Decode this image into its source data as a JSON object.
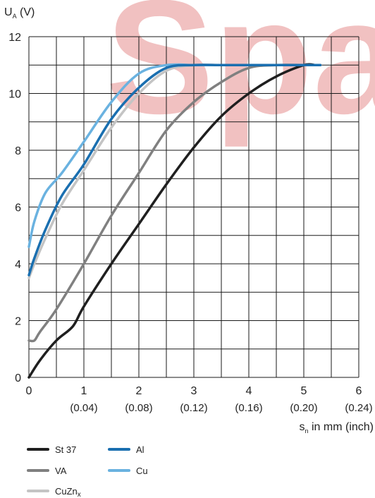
{
  "chart_data": {
    "type": "line",
    "ylabel": {
      "main": "U",
      "sub": "A",
      "unit": " (V)"
    },
    "xlabel": {
      "main": "s",
      "sub": "n",
      "unit": " in mm (inch)"
    },
    "xlim": [
      0,
      6
    ],
    "ylim": [
      0,
      12
    ],
    "grid": true,
    "x_ticks": [
      {
        "value": 0,
        "label": "0",
        "sub": ""
      },
      {
        "value": 1,
        "label": "1",
        "sub": "(0.04)"
      },
      {
        "value": 2,
        "label": "2",
        "sub": "(0.08)"
      },
      {
        "value": 3,
        "label": "3",
        "sub": "(0.12)"
      },
      {
        "value": 4,
        "label": "4",
        "sub": "(0.16)"
      },
      {
        "value": 5,
        "label": "5",
        "sub": "(0.20)"
      },
      {
        "value": 6,
        "label": "6",
        "sub": "(0.24)"
      }
    ],
    "y_ticks": [
      {
        "value": 0,
        "label": "0"
      },
      {
        "value": 2,
        "label": "2"
      },
      {
        "value": 4,
        "label": "4"
      },
      {
        "value": 6,
        "label": "6"
      },
      {
        "value": 8,
        "label": "8"
      },
      {
        "value": 10,
        "label": "10"
      },
      {
        "value": 12,
        "label": "12"
      }
    ],
    "legend_position": "bottom-left",
    "series": [
      {
        "name": "St 37",
        "color": "#1f1f1f",
        "x": [
          0,
          0.2,
          0.5,
          0.8,
          1.0,
          1.5,
          2.0,
          2.5,
          3.0,
          3.5,
          4.0,
          4.5,
          5.0,
          5.2
        ],
        "y": [
          0,
          0.6,
          1.3,
          1.8,
          2.5,
          4.0,
          5.4,
          6.8,
          8.1,
          9.2,
          10.0,
          10.6,
          11.0,
          11.0
        ]
      },
      {
        "name": "Al",
        "color": "#1a6fb0",
        "x": [
          0,
          0.1,
          0.3,
          0.6,
          1.0,
          1.5,
          2.0,
          2.5,
          3.0,
          3.5,
          4.0,
          5.0,
          5.3
        ],
        "y": [
          3.6,
          4.2,
          5.2,
          6.4,
          7.5,
          9.1,
          10.2,
          10.9,
          11.0,
          11.0,
          11.0,
          11.0,
          11.0
        ]
      },
      {
        "name": "VA",
        "color": "#808080",
        "x": [
          0,
          0.1,
          0.2,
          0.5,
          1.0,
          1.5,
          2.0,
          2.5,
          3.0,
          3.5,
          4.0,
          4.5,
          5.0,
          5.3
        ],
        "y": [
          1.3,
          1.3,
          1.6,
          2.4,
          4.0,
          5.7,
          7.2,
          8.7,
          9.7,
          10.4,
          10.9,
          11.0,
          11.0,
          11.0
        ]
      },
      {
        "name": "Cu",
        "color": "#6ab2e0",
        "x": [
          0,
          0.1,
          0.3,
          0.6,
          1.0,
          1.5,
          2.0,
          2.5,
          3.0,
          3.5,
          4.0,
          5.0,
          5.3
        ],
        "y": [
          4.6,
          5.5,
          6.5,
          7.2,
          8.3,
          9.7,
          10.7,
          11.0,
          11.0,
          11.0,
          11.0,
          11.0,
          11.0
        ]
      },
      {
        "name": "CuZn",
        "name_sub": "x",
        "color": "#c4c4c4",
        "x": [
          0,
          0.1,
          0.3,
          0.6,
          1.0,
          1.5,
          2.0,
          2.5,
          3.0,
          3.5,
          4.0,
          5.0,
          5.3
        ],
        "y": [
          3.5,
          4.0,
          4.9,
          6.1,
          7.3,
          8.8,
          10.0,
          10.8,
          11.0,
          11.0,
          11.0,
          11.0,
          11.0
        ]
      }
    ]
  }
}
